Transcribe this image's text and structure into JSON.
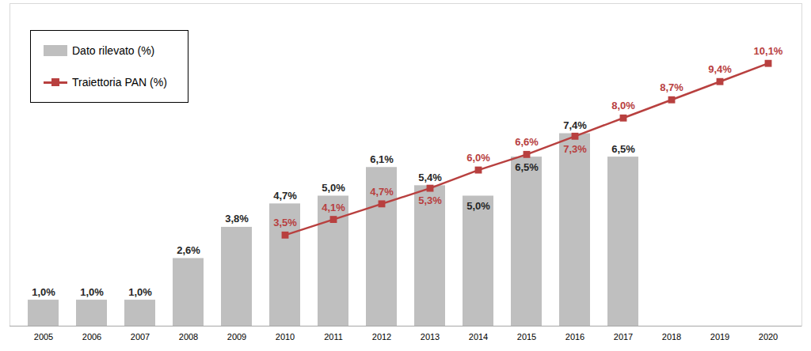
{
  "chart_data": {
    "type": "bar",
    "categories": [
      "2005",
      "2006",
      "2007",
      "2008",
      "2009",
      "2010",
      "2011",
      "2012",
      "2013",
      "2014",
      "2015",
      "2016",
      "2017",
      "2018",
      "2019",
      "2020"
    ],
    "series": [
      {
        "name": "Dato rilevato (%)",
        "type": "bar",
        "color": "#bfbfbf",
        "values": [
          1.0,
          1.0,
          1.0,
          2.6,
          3.8,
          4.7,
          5.0,
          6.1,
          5.4,
          5.0,
          6.5,
          7.4,
          6.5,
          null,
          null,
          null
        ],
        "value_labels": [
          "1,0%",
          "1,0%",
          "1,0%",
          "2,6%",
          "3,8%",
          "4,7%",
          "5,0%",
          "6,1%",
          "5,4%",
          "5,0%",
          "6,5%",
          "7,4%",
          "6,5%",
          null,
          null,
          null
        ]
      },
      {
        "name": "Traiettoria PAN (%)",
        "type": "line",
        "color": "#b8403f",
        "marker": "square",
        "values": [
          null,
          null,
          null,
          null,
          null,
          3.5,
          4.1,
          4.7,
          5.3,
          6.0,
          6.6,
          7.3,
          8.0,
          8.7,
          9.4,
          10.1
        ],
        "value_labels": [
          null,
          null,
          null,
          null,
          null,
          "3,5%",
          "4,1%",
          "4,7%",
          "5,3%",
          "6,0%",
          "6,6%",
          "7,3%",
          "8,0%",
          "8,7%",
          "9,4%",
          "10,1%"
        ]
      }
    ],
    "ylim": [
      0,
      12.4
    ],
    "data_labels": true,
    "tick_labels": "x",
    "legend": "top-left"
  }
}
